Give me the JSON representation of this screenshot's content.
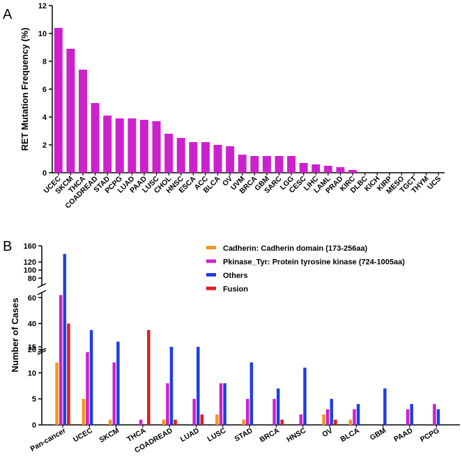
{
  "chart_data": [
    {
      "type": "bar",
      "panel_label": "A",
      "ylabel": "RET Mutation Frequency (%)",
      "xlabel": "",
      "ylim": [
        0,
        12
      ],
      "yticks": [
        "0",
        "2",
        "4",
        "6",
        "8",
        "10",
        "12"
      ],
      "color": "#cc22cc",
      "categories": [
        "UCEC",
        "SKCM",
        "THCA",
        "COADREAD",
        "STAD",
        "PCPG",
        "LUAD",
        "PAAD",
        "LUSC",
        "CHOL",
        "HNSC",
        "ESCA",
        "ACC",
        "BLCA",
        "OV",
        "UVM",
        "BRCA",
        "GBM",
        "SARC",
        "LGG",
        "CESC",
        "LIHC",
        "LAML",
        "PRAD",
        "KIRC",
        "DLBC",
        "KICH",
        "KIRP",
        "MESO",
        "TGCT",
        "THYM",
        "UCS"
      ],
      "values": [
        10.4,
        8.9,
        7.4,
        5.0,
        4.1,
        3.9,
        3.9,
        3.8,
        3.7,
        2.8,
        2.5,
        2.2,
        2.2,
        2.0,
        1.9,
        1.3,
        1.2,
        1.2,
        1.2,
        1.2,
        0.7,
        0.6,
        0.5,
        0.4,
        0.2,
        0,
        0,
        0,
        0,
        0,
        0,
        0
      ]
    },
    {
      "type": "bar",
      "panel_label": "B",
      "ylabel": "Number of Cases",
      "xlabel": "",
      "broken_axis": true,
      "ylim_segments": [
        [
          0,
          15
        ],
        [
          15,
          65
        ],
        [
          65,
          160
        ]
      ],
      "yticks": [
        "0",
        "5",
        "10",
        "15",
        "20",
        "40",
        "60",
        "80",
        "100",
        "120",
        "160"
      ],
      "legend_position": "top-right",
      "categories": [
        "Pan-cancer",
        "UCEC",
        "SKCM",
        "THCA",
        "COADREAD",
        "LUAD",
        "LUSC",
        "STAD",
        "BRCA",
        "HNSC",
        "OV",
        "BLCA",
        "GBM",
        "PAAD",
        "PCPG"
      ],
      "series": [
        {
          "name": "Cadherin: Cadherin domain (173-256aa)",
          "color": "#f7941d",
          "values": [
            12,
            5,
            1,
            0,
            1,
            0,
            2,
            1,
            0,
            0,
            2,
            1,
            0,
            0,
            0
          ]
        },
        {
          "name": "Pkinase_Tyr: Protein tyrosine kinase (724-1005aa)",
          "color": "#cc22cc",
          "values": [
            62,
            14,
            12,
            1,
            8,
            5,
            8,
            5,
            5,
            2,
            3,
            3,
            0,
            3,
            4
          ]
        },
        {
          "name": "Others",
          "color": "#1f3fe0",
          "values": [
            140,
            35,
            26,
            0,
            19,
            15,
            8,
            12,
            7,
            11,
            5,
            4,
            7,
            4,
            3
          ]
        },
        {
          "name": "Fusion",
          "color": "#e31a1c",
          "values": [
            40,
            0,
            0,
            35,
            1,
            2,
            0,
            0,
            1,
            0,
            1,
            0,
            0,
            0,
            0
          ]
        }
      ]
    }
  ]
}
